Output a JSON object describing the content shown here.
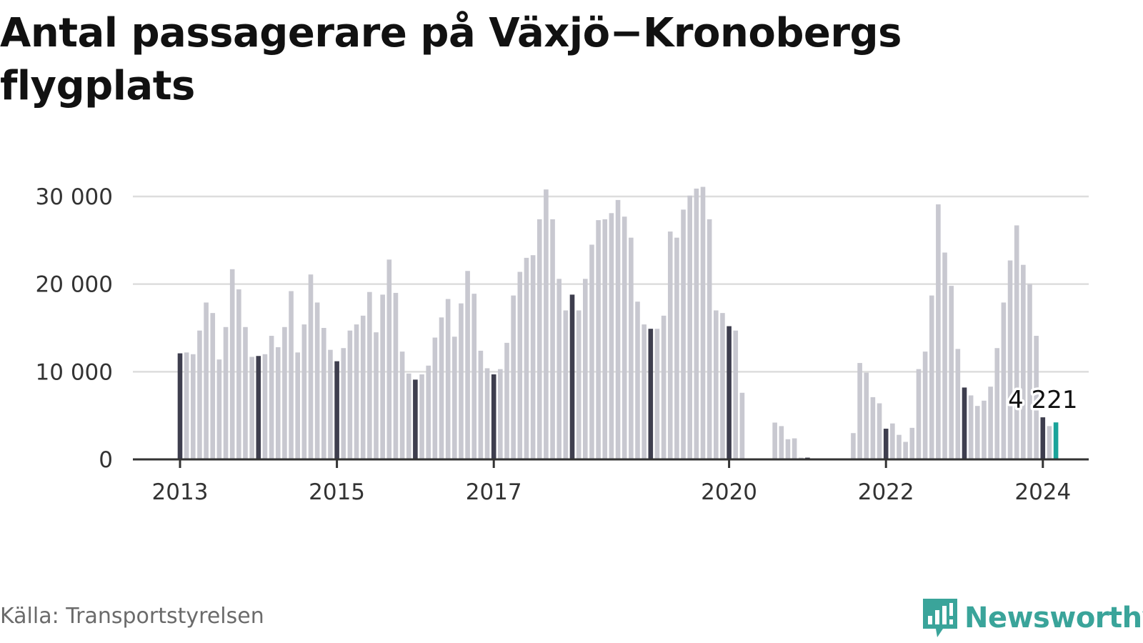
{
  "title": "Antal passagerare på Växjö−Kronobergs flygplats",
  "source": "Källa: Transportstyrelsen",
  "brand": {
    "name": "Newsworthy",
    "icon": "newsworthy-logo-icon",
    "color": "#3aa49a"
  },
  "colors": {
    "bar": "#c8c8d0",
    "january": "#3e3e4e",
    "latest": "#1aa39a",
    "grid": "#dddddd",
    "axis": "#333333"
  },
  "chart_data": {
    "type": "bar",
    "title": "Antal passagerare på Växjö−Kronobergs flygplats",
    "xlabel": "",
    "ylabel": "",
    "ylim": [
      0,
      30000
    ],
    "yticks": [
      0,
      10000,
      20000,
      30000
    ],
    "ytick_labels": [
      "0",
      "10 000",
      "20 000",
      "30 000"
    ],
    "xtick_labels": [
      {
        "label": "2013",
        "date": "2013-01"
      },
      {
        "label": "2015",
        "date": "2015-01"
      },
      {
        "label": "2017",
        "date": "2017-01"
      },
      {
        "label": "2020",
        "date": "2020-01"
      },
      {
        "label": "2022",
        "date": "2022-01"
      },
      {
        "label": "2024",
        "date": "2024-01"
      }
    ],
    "start": "2013-01",
    "end": "2024-01",
    "grid": true,
    "highlight": "january bars dark, latest bar teal",
    "series": [
      {
        "values": [
          12100,
          12200,
          12000,
          14700,
          17900,
          16700,
          11400,
          15100,
          21700,
          19400,
          15100,
          11700,
          11800,
          12000,
          14100,
          12800,
          15100,
          19200,
          12200,
          15400,
          21100,
          17900,
          15000,
          12500,
          11200,
          12700,
          14700,
          15400,
          16400,
          19100,
          14500,
          18800,
          22800,
          19000,
          12300,
          9800,
          9100,
          9700,
          10700,
          13900,
          16200,
          18300,
          14000,
          17800,
          21500,
          18900,
          12400,
          10400,
          9700,
          10300,
          13300,
          18700,
          21400,
          23000,
          23300,
          27400,
          30800,
          27400,
          20600,
          17000,
          18800,
          17000,
          20600,
          24500,
          27300,
          27400,
          28100,
          29600,
          27700,
          25300,
          18000,
          15400,
          14900,
          14900,
          16400,
          26000,
          25300,
          28500,
          30100,
          30900,
          31100,
          27400,
          17000,
          16700,
          15200,
          14700,
          7600,
          0,
          0,
          0,
          0,
          4200,
          3800,
          2300,
          2400,
          200,
          200,
          0,
          0,
          0,
          0,
          0,
          0,
          3000,
          11000,
          9900,
          7100,
          6400,
          3500,
          4100,
          2800,
          2000,
          3600,
          10300,
          12300,
          18700,
          29100,
          23600,
          19800,
          12600,
          8200,
          7300,
          6100,
          6700,
          8300,
          12700,
          17900,
          22700,
          26700,
          22200,
          20000,
          14100,
          4800,
          3800,
          4221
        ]
      }
    ],
    "annotations": [
      {
        "date": "2024-01",
        "value": 4221,
        "label": "4 221"
      }
    ]
  }
}
